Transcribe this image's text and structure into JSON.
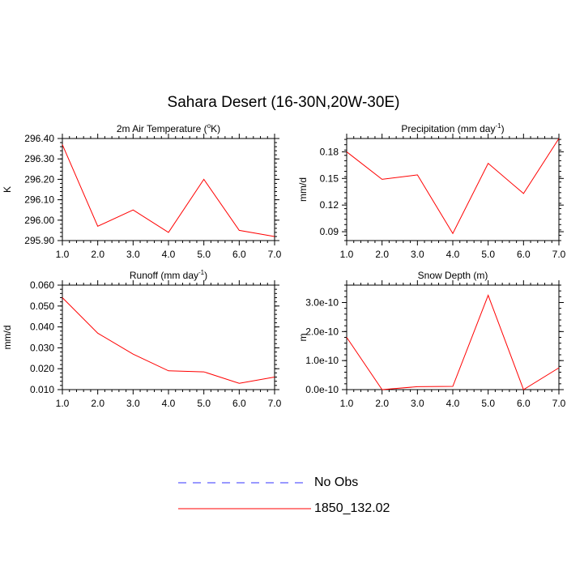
{
  "title": "Sahara Desert (16-30N,20W-30E)",
  "colors": {
    "model": "#ff0000",
    "obs": "#3333ff",
    "axis": "#000000"
  },
  "legend": [
    {
      "label": "No Obs",
      "style": "dashed",
      "color": "#3333ff"
    },
    {
      "label": "1850_132.02",
      "style": "solid",
      "color": "#ff0000"
    }
  ],
  "chart_data": [
    {
      "type": "line",
      "title": "2m Air Temperature (°K)",
      "title_pre": "2m Air Temperature (",
      "title_sup": "o",
      "title_post": "K)",
      "xlabel": "",
      "ylabel": "K",
      "xlim": [
        1,
        7
      ],
      "ylim": [
        295.9,
        296.4
      ],
      "xticks": [
        1,
        2,
        3,
        4,
        5,
        6,
        7
      ],
      "xtick_labels": [
        "1.0",
        "2.0",
        "3.0",
        "4.0",
        "5.0",
        "6.0",
        "7.0"
      ],
      "yticks": [
        295.9,
        296.0,
        296.1,
        296.2,
        296.3,
        296.4
      ],
      "ytick_labels": [
        "295.90",
        "296.00",
        "296.10",
        "296.20",
        "296.30",
        "296.40"
      ],
      "series": [
        {
          "name": "1850_132.02",
          "x": [
            1,
            2,
            3,
            4,
            5,
            6,
            7
          ],
          "values": [
            296.37,
            295.97,
            296.05,
            295.94,
            296.2,
            295.95,
            295.92
          ]
        }
      ]
    },
    {
      "type": "line",
      "title": "Precipitation (mm day-1)",
      "title_pre": "Precipitation (mm day",
      "title_sup": "-1",
      "title_post": ")",
      "xlabel": "",
      "ylabel": "mm/d",
      "xlim": [
        1,
        7
      ],
      "ylim": [
        0.08,
        0.195
      ],
      "xticks": [
        1,
        2,
        3,
        4,
        5,
        6,
        7
      ],
      "xtick_labels": [
        "1.0",
        "2.0",
        "3.0",
        "4.0",
        "5.0",
        "6.0",
        "7.0"
      ],
      "yticks": [
        0.09,
        0.12,
        0.15,
        0.18
      ],
      "ytick_labels": [
        "0.09",
        "0.12",
        "0.15",
        "0.18"
      ],
      "series": [
        {
          "name": "1850_132.02",
          "x": [
            1,
            2,
            3,
            4,
            5,
            6,
            7
          ],
          "values": [
            0.18,
            0.149,
            0.154,
            0.088,
            0.167,
            0.133,
            0.195
          ]
        }
      ]
    },
    {
      "type": "line",
      "title": "Runoff (mm day-1)",
      "title_pre": "Runoff (mm day",
      "title_sup": "-1",
      "title_post": ")",
      "xlabel": "",
      "ylabel": "mm/d",
      "xlim": [
        1,
        7
      ],
      "ylim": [
        0.01,
        0.06
      ],
      "xticks": [
        1,
        2,
        3,
        4,
        5,
        6,
        7
      ],
      "xtick_labels": [
        "1.0",
        "2.0",
        "3.0",
        "4.0",
        "5.0",
        "6.0",
        "7.0"
      ],
      "yticks": [
        0.01,
        0.02,
        0.03,
        0.04,
        0.05,
        0.06
      ],
      "ytick_labels": [
        "0.010",
        "0.020",
        "0.030",
        "0.040",
        "0.050",
        "0.060"
      ],
      "series": [
        {
          "name": "1850_132.02",
          "x": [
            1,
            2,
            3,
            4,
            5,
            6,
            7
          ],
          "values": [
            0.054,
            0.037,
            0.027,
            0.019,
            0.0185,
            0.013,
            0.016
          ]
        }
      ]
    },
    {
      "type": "line",
      "title": "Snow Depth (m)",
      "title_pre": "Snow Depth (m)",
      "title_sup": "",
      "title_post": "",
      "xlabel": "",
      "ylabel": "m",
      "xlim": [
        1,
        7
      ],
      "ylim": [
        0,
        3.6e-10
      ],
      "xticks": [
        1,
        2,
        3,
        4,
        5,
        6,
        7
      ],
      "xtick_labels": [
        "1.0",
        "2.0",
        "3.0",
        "4.0",
        "5.0",
        "6.0",
        "7.0"
      ],
      "yticks": [
        0,
        1e-10,
        2e-10,
        3e-10
      ],
      "ytick_labels": [
        "0.0e-10",
        "1.0e-10",
        "2.0e-10",
        "3.0e-10"
      ],
      "series": [
        {
          "name": "1850_132.02",
          "x": [
            1,
            2,
            3,
            4,
            5,
            6,
            7
          ],
          "values": [
            1.8e-10,
            0.0,
            1e-11,
            1.1e-11,
            3.25e-10,
            0.0,
            7.5e-11
          ]
        }
      ]
    }
  ]
}
